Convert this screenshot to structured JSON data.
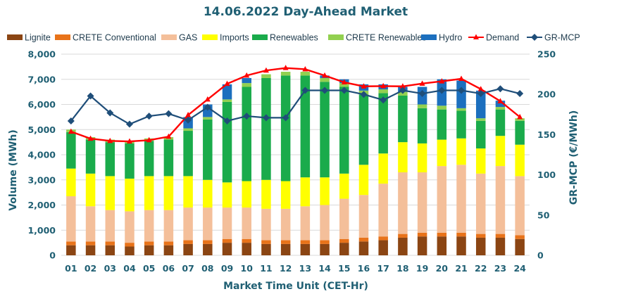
{
  "chart_data": {
    "type": "bar",
    "title": "14.06.2022  Day-Ahead Market",
    "xlabel": "Market Time Unit (CET-Hr)",
    "ylabel": "Volume (MWh)",
    "y2label": "GR-MCP (€/MWh)",
    "ylim": [
      0,
      8000
    ],
    "y2lim": [
      0,
      250
    ],
    "yticks": [
      "0",
      "1,000",
      "2,000",
      "3,000",
      "4,000",
      "5,000",
      "6,000",
      "7,000",
      "8,000"
    ],
    "y2ticks": [
      "0",
      "50",
      "100",
      "150",
      "200",
      "250"
    ],
    "categories": [
      "01",
      "02",
      "03",
      "04",
      "05",
      "06",
      "07",
      "08",
      "09",
      "10",
      "11",
      "12",
      "13",
      "14",
      "15",
      "16",
      "17",
      "18",
      "19",
      "20",
      "21",
      "22",
      "23",
      "24"
    ],
    "series": [
      {
        "name": "Lignite",
        "kind": "bar",
        "color": "#8b4513",
        "values": [
          400,
          400,
          400,
          350,
          400,
          400,
          450,
          450,
          500,
          500,
          450,
          450,
          450,
          450,
          500,
          550,
          600,
          700,
          750,
          750,
          750,
          700,
          700,
          650
        ]
      },
      {
        "name": "CRETE Conventional",
        "kind": "bar",
        "color": "#e8731a",
        "values": [
          150,
          150,
          150,
          150,
          150,
          150,
          150,
          150,
          150,
          150,
          150,
          150,
          150,
          150,
          150,
          150,
          150,
          150,
          150,
          150,
          150,
          150,
          150,
          150
        ]
      },
      {
        "name": "GAS",
        "kind": "bar",
        "color": "#f4bf9a",
        "values": [
          1800,
          1400,
          1250,
          1250,
          1250,
          1250,
          1300,
          1300,
          1250,
          1250,
          1250,
          1250,
          1350,
          1400,
          1600,
          1700,
          2100,
          2450,
          2400,
          2650,
          2700,
          2400,
          2700,
          2350
        ]
      },
      {
        "name": "Imports",
        "kind": "bar",
        "color": "#ffff00",
        "values": [
          1100,
          1300,
          1350,
          1300,
          1350,
          1350,
          1250,
          1100,
          1000,
          1050,
          1150,
          1100,
          1150,
          1100,
          1000,
          1200,
          1200,
          1200,
          1150,
          1050,
          1050,
          1000,
          1200,
          1250
        ]
      },
      {
        "name": "Renewables",
        "kind": "bar",
        "color": "#1aab4b",
        "values": [
          1450,
          1350,
          1350,
          1400,
          1400,
          1450,
          1800,
          2400,
          3200,
          3750,
          4050,
          4200,
          4050,
          3800,
          3450,
          2800,
          2400,
          1850,
          1400,
          1200,
          1100,
          1100,
          1050,
          950
        ]
      },
      {
        "name": "CRETE Renewables",
        "kind": "bar",
        "color": "#92d050",
        "values": [
          100,
          100,
          100,
          100,
          100,
          100,
          100,
          100,
          100,
          150,
          150,
          150,
          150,
          150,
          150,
          150,
          150,
          150,
          150,
          150,
          100,
          100,
          100,
          100
        ]
      },
      {
        "name": "Hydro",
        "kind": "bar",
        "color": "#1c6fbe",
        "values": [
          0,
          0,
          0,
          0,
          0,
          0,
          450,
          500,
          600,
          200,
          0,
          0,
          0,
          100,
          150,
          250,
          200,
          200,
          700,
          1050,
          1100,
          1100,
          250,
          0
        ]
      },
      {
        "name": "Demand",
        "kind": "line",
        "axis": "left",
        "color": "#ff0000",
        "values": [
          4920,
          4640,
          4550,
          4530,
          4580,
          4720,
          5580,
          6200,
          6820,
          7150,
          7350,
          7450,
          7400,
          7150,
          6880,
          6720,
          6730,
          6720,
          6830,
          6920,
          7020,
          6610,
          6130,
          5500
        ]
      },
      {
        "name": "GR-MCP",
        "kind": "line",
        "axis": "right",
        "color": "#1f4e79",
        "values": [
          167,
          198,
          177,
          163,
          173,
          176,
          168,
          184,
          167,
          173,
          171,
          171,
          205,
          205,
          205,
          200,
          193,
          205,
          201,
          205,
          205,
          201,
          207,
          201
        ]
      }
    ]
  }
}
